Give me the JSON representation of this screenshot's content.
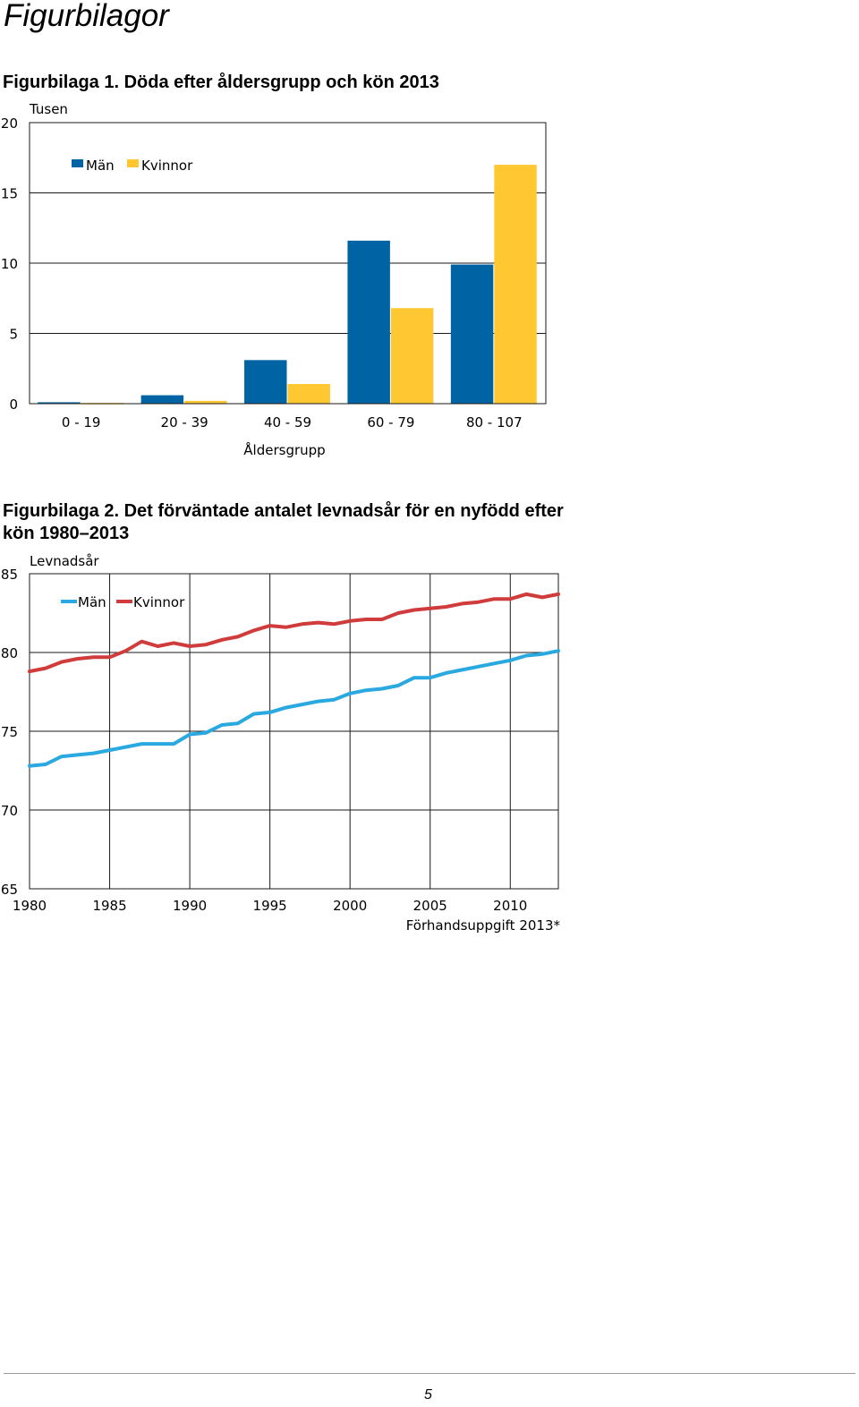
{
  "page": {
    "heading": "Figurbilagor",
    "page_number": "5"
  },
  "figures": [
    {
      "caption": "Figurbilaga 1. Döda efter åldersgrupp och kön 2013"
    },
    {
      "caption_line1": "Figurbilaga 2. Det förväntade antalet levnadsår för en nyfödd efter",
      "caption_line2": "kön 1980–2013"
    }
  ],
  "chart_data": [
    {
      "type": "bar",
      "title": "Figurbilaga 1. Döda efter åldersgrupp och kön 2013",
      "ylabel": "Tusen",
      "xlabel": "Åldersgrupp",
      "categories": [
        "0 - 19",
        "20 - 39",
        "40 - 59",
        "60 - 79",
        "80 - 107"
      ],
      "series": [
        {
          "name": "Män",
          "color": "#0063a3",
          "values": [
            0.1,
            0.6,
            3.1,
            11.6,
            9.9
          ]
        },
        {
          "name": "Kvinnor",
          "color": "#ffc832",
          "values": [
            0.05,
            0.2,
            1.4,
            6.8,
            17.0
          ]
        }
      ],
      "ylim": [
        0,
        20
      ],
      "yticks": [
        "0",
        "5",
        "10",
        "15",
        "20"
      ],
      "grid": true,
      "legend": "top-left"
    },
    {
      "type": "line",
      "title": "Figurbilaga 2. Det förväntade antalet levnadsår för en nyfödd efter kön 1980–2013",
      "ylabel": "Levnadsår",
      "note": "Förhandsuppgift 2013*",
      "x": [
        1980,
        1981,
        1982,
        1983,
        1984,
        1985,
        1986,
        1987,
        1988,
        1989,
        1990,
        1991,
        1992,
        1993,
        1994,
        1995,
        1996,
        1997,
        1998,
        1999,
        2000,
        2001,
        2002,
        2003,
        2004,
        2005,
        2006,
        2007,
        2008,
        2009,
        2010,
        2011,
        2012,
        2013
      ],
      "series": [
        {
          "name": "Män",
          "color": "#2aa8e0",
          "values": [
            72.8,
            72.9,
            73.4,
            73.5,
            73.6,
            73.8,
            74.0,
            74.2,
            74.2,
            74.2,
            74.8,
            74.9,
            75.4,
            75.5,
            76.1,
            76.2,
            76.5,
            76.7,
            76.9,
            77.0,
            77.4,
            77.6,
            77.7,
            77.9,
            78.4,
            78.4,
            78.7,
            78.9,
            79.1,
            79.3,
            79.5,
            79.8,
            79.9,
            80.1
          ]
        },
        {
          "name": "Kvinnor",
          "color": "#d03c3c",
          "values": [
            78.8,
            79.0,
            79.4,
            79.6,
            79.7,
            79.7,
            80.1,
            80.7,
            80.4,
            80.6,
            80.4,
            80.5,
            80.8,
            81.0,
            81.4,
            81.7,
            81.6,
            81.8,
            81.9,
            81.8,
            82.0,
            82.1,
            82.1,
            82.5,
            82.7,
            82.8,
            82.9,
            83.1,
            83.2,
            83.4,
            83.4,
            83.7,
            83.5,
            83.7
          ]
        }
      ],
      "xlim": [
        1980,
        2013
      ],
      "xticks": [
        "1980",
        "1985",
        "1990",
        "1995",
        "2000",
        "2005",
        "2010"
      ],
      "ylim": [
        65,
        85
      ],
      "yticks": [
        "65",
        "70",
        "75",
        "80",
        "85"
      ],
      "grid": true,
      "legend": "top-left"
    }
  ]
}
